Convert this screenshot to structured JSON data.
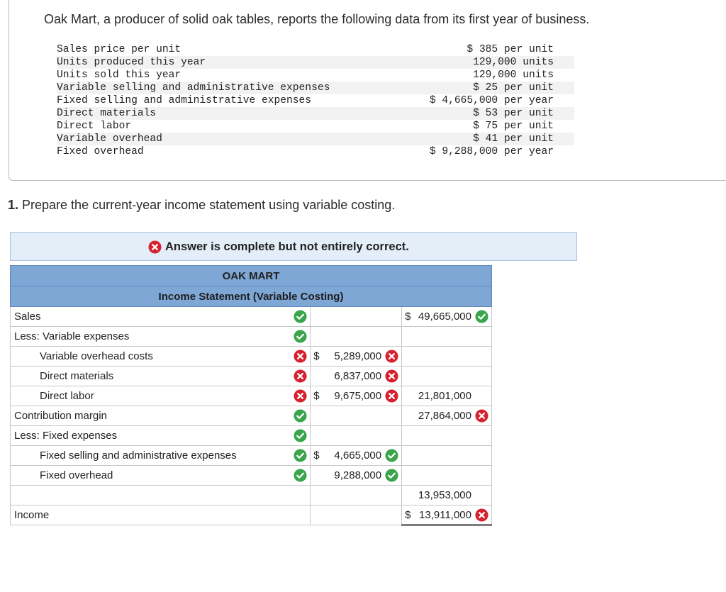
{
  "problem": {
    "intro": "Oak Mart, a producer of solid oak tables, reports the following data from its first year of business.",
    "rows": [
      {
        "label": "Sales price per unit",
        "value": "$ 385 per unit"
      },
      {
        "label": "Units produced this year",
        "value": "129,000 units"
      },
      {
        "label": "Units sold this year",
        "value": "129,000 units"
      },
      {
        "label": "Variable selling and administrative expenses",
        "value": "$ 25 per unit"
      },
      {
        "label": "Fixed selling and administrative expenses",
        "value": "$ 4,665,000 per year"
      },
      {
        "label": "Direct materials",
        "value": "$ 53 per unit"
      },
      {
        "label": "Direct labor",
        "value": "$ 75 per unit"
      },
      {
        "label": "Variable overhead",
        "value": "$ 41 per unit"
      },
      {
        "label": "Fixed overhead",
        "value": "$ 9,288,000 per year"
      }
    ]
  },
  "question": {
    "number": "1.",
    "text": " Prepare the current-year income statement using variable costing."
  },
  "banner": {
    "text": "Answer is complete but not entirely correct."
  },
  "statement": {
    "company": "OAK MART",
    "title": "Income Statement (Variable Costing)",
    "rows": [
      {
        "label": "Sales",
        "status": "correct",
        "right": "49,665,000",
        "right_cur": "$",
        "right_status": "correct"
      },
      {
        "label": "Less: Variable expenses",
        "status": "correct"
      },
      {
        "label": "Variable overhead costs",
        "status": "incorrect",
        "mid": "5,289,000",
        "mid_cur": "$",
        "mid_status": "incorrect"
      },
      {
        "label": "Direct materials",
        "status": "incorrect",
        "mid": "6,837,000",
        "mid_status": "incorrect"
      },
      {
        "label": "Direct labor",
        "status": "incorrect",
        "mid": "9,675,000",
        "mid_cur": "$",
        "mid_status": "incorrect",
        "right": "21,801,000"
      },
      {
        "label": "Contribution margin",
        "status": "correct",
        "right": "27,864,000",
        "right_status": "incorrect"
      },
      {
        "label": "Less: Fixed expenses",
        "status": "correct"
      },
      {
        "label": "Fixed selling and administrative expenses",
        "status": "correct",
        "mid": "4,665,000",
        "mid_cur": "$",
        "mid_status": "correct"
      },
      {
        "label": "Fixed overhead",
        "status": "correct",
        "mid": "9,288,000",
        "mid_status": "correct"
      },
      {
        "label": "",
        "right": "13,953,000"
      },
      {
        "label": "Income",
        "right": "13,911,000",
        "right_cur": "$",
        "right_status": "incorrect"
      }
    ]
  },
  "colors": {
    "correct": "#3aa54a",
    "incorrect": "#d6212f",
    "header": "#7fa7d6",
    "banner": "#e3eef9"
  },
  "icons": {
    "correct": "check-circle-icon",
    "incorrect": "x-circle-icon"
  }
}
